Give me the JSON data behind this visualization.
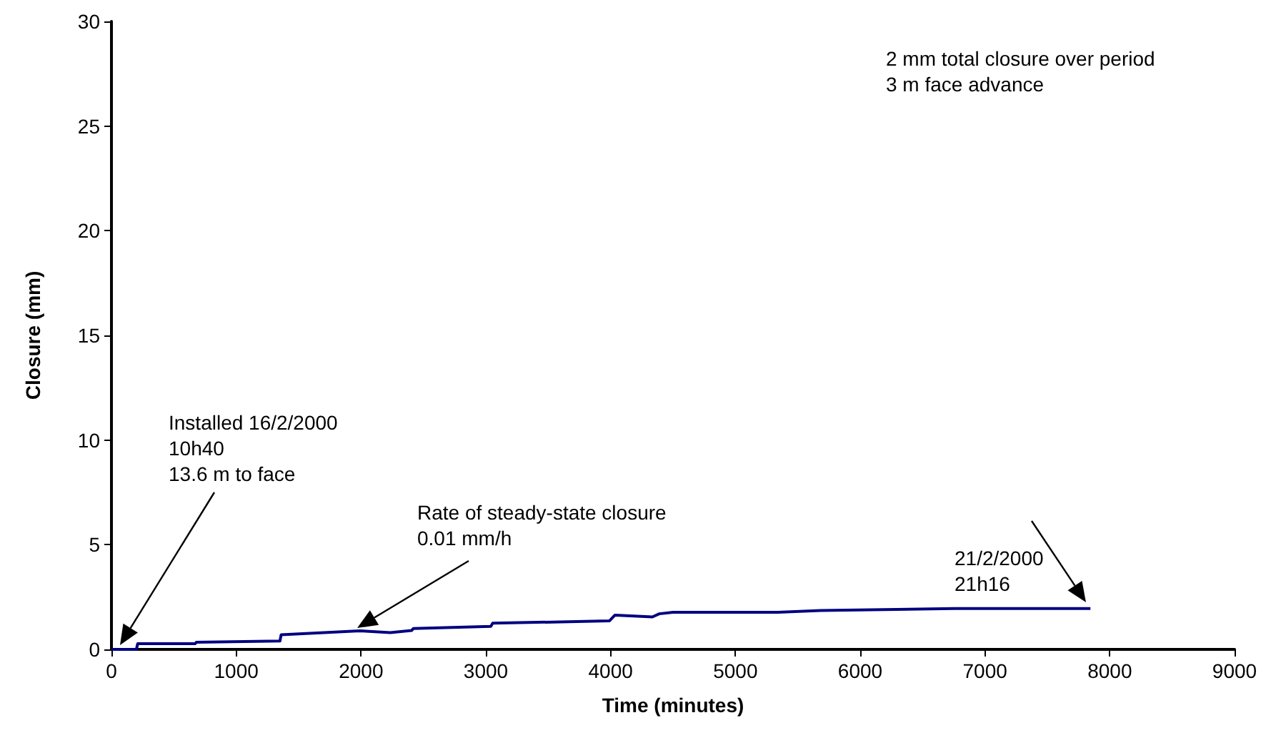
{
  "chart_data": {
    "type": "line",
    "xlabel": "Time (minutes)",
    "ylabel": "Closure (mm)",
    "xlim": [
      0,
      9000
    ],
    "xticks": [
      0,
      1000,
      2000,
      3000,
      4000,
      5000,
      6000,
      7000,
      8000,
      9000
    ],
    "ylim": [
      0,
      30
    ],
    "yticks": [
      0,
      5,
      10,
      15,
      20,
      25,
      30
    ],
    "series": [
      {
        "color": "#000080",
        "x": [
          0,
          200,
          210,
          670,
          680,
          1350,
          1360,
          1990,
          2235,
          2405,
          2420,
          3040,
          3055,
          3990,
          4035,
          4335,
          4390,
          4500,
          5340,
          5685,
          6755,
          7845
        ],
        "values": [
          0,
          0,
          0.27,
          0.27,
          0.34,
          0.4,
          0.7,
          0.89,
          0.8,
          0.9,
          1.0,
          1.1,
          1.25,
          1.36,
          1.64,
          1.55,
          1.7,
          1.77,
          1.77,
          1.86,
          1.95,
          1.95
        ]
      }
    ],
    "annotations": [
      "Installed 16/2/2000\n10h40\n13.6 m to face",
      "Rate of steady-state closure\n0.01 mm/h",
      "21/2/2000\n21h16",
      "2 mm total closure over period\n3 m face advance"
    ]
  }
}
